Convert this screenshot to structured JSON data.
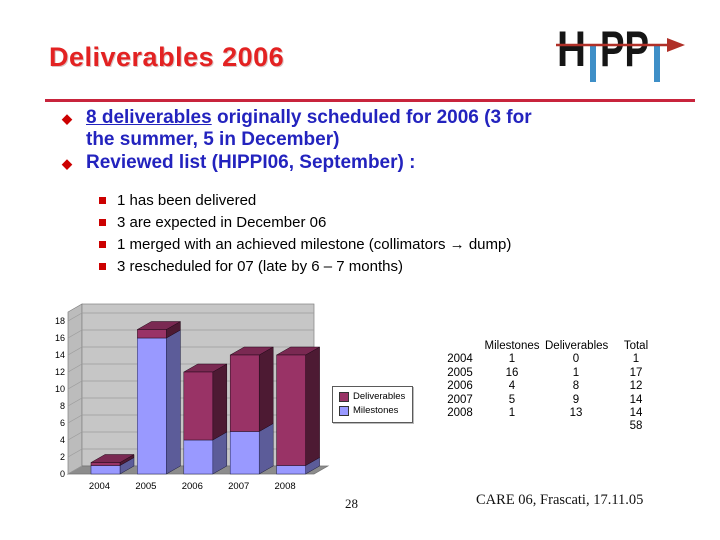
{
  "slide": {
    "title": "Deliverables 2006",
    "page_number": "28",
    "footer_credit": "CARE 06, Frascati, 17.11.05"
  },
  "logo": {
    "h": "H",
    "pp": "PP"
  },
  "colors": {
    "title_red": "#E32222",
    "rule_red": "#C8243C",
    "body_blue": "#2323BE",
    "marker_red": "#CC0000",
    "logo_blue": "#3E8FC7",
    "logo_arrow_red": "#B03028",
    "logo_black": "#151515"
  },
  "bullets": {
    "b1_underlined": "8 deliverables",
    "b1_rest_line1": " originally scheduled for 2006 (3 for",
    "b1_line2": "the summer, 5 in December)",
    "b2": "Reviewed list (HIPPI06, September) :"
  },
  "sub_bullets": [
    "1 has been delivered",
    "3 are expected in December 06",
    "1 merged with an achieved milestone (collimators → dump)",
    "3 rescheduled for 07 (late by 6 – 7 months)"
  ],
  "chart_data": {
    "type": "bar",
    "style": "3d-stacked-column",
    "categories": [
      "2004",
      "2005",
      "2006",
      "2007",
      "2008"
    ],
    "series": [
      {
        "name": "Milestones",
        "color": "#9999FF",
        "values": [
          1,
          16,
          4,
          5,
          1
        ]
      },
      {
        "name": "Deliverables",
        "color": "#993366",
        "values": [
          0,
          1,
          8,
          9,
          13
        ]
      }
    ],
    "title": "",
    "xlabel": "",
    "ylabel": "",
    "ylim": [
      0,
      18
    ],
    "ytick_step": 2,
    "grid": true,
    "wall_color": "#C6C6C6",
    "floor_color": "#8C8C8C",
    "legend_position": "right"
  },
  "legend": {
    "items": [
      {
        "label": "Deliverables",
        "color": "#993366"
      },
      {
        "label": "Milestones",
        "color": "#9999FF"
      }
    ]
  },
  "table": {
    "headers": [
      "",
      "Milestones",
      "Deliverables",
      "Total"
    ],
    "rows": [
      [
        "2004",
        "1",
        "0",
        "1"
      ],
      [
        "2005",
        "16",
        "1",
        "17"
      ],
      [
        "2006",
        "4",
        "8",
        "12"
      ],
      [
        "2007",
        "5",
        "9",
        "14"
      ],
      [
        "2008",
        "1",
        "13",
        "14"
      ],
      [
        "",
        "",
        "",
        "58"
      ]
    ]
  }
}
